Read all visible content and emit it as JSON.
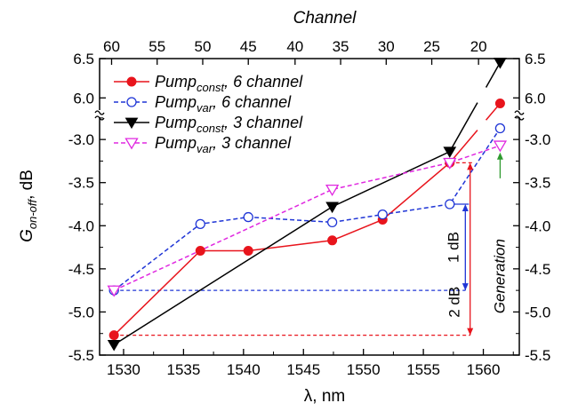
{
  "chart_data": {
    "type": "line",
    "title": "",
    "xlabel": "λ, nm",
    "x2label": "Channel",
    "ylabel": {
      "main": "G",
      "sub": "on-off",
      "unit": ", dB"
    },
    "xlim": [
      1528,
      1563
    ],
    "x_ticks": [
      1530,
      1535,
      1540,
      1545,
      1550,
      1555,
      1560
    ],
    "x_tick_labels": [
      "1530",
      "1535",
      "1540",
      "1545",
      "1550",
      "1555",
      "1560"
    ],
    "x2_ticks": [
      1529,
      1532.8,
      1536.6,
      1540.4,
      1544.3,
      1548.1,
      1551.9,
      1555.7,
      1559.6
    ],
    "x2_tick_labels": [
      "60",
      "55",
      "50",
      "45",
      "40",
      "35",
      "30",
      "25",
      "20"
    ],
    "y_axis": {
      "lower_range": [
        -5.5,
        -2.7
      ],
      "break_between": [
        -2.7,
        5.8
      ],
      "upper_range": [
        5.8,
        6.5
      ],
      "ticks": [
        -5.5,
        -5.0,
        -4.5,
        -4.0,
        -3.5,
        -3.0,
        6.0,
        6.5
      ],
      "tick_labels": [
        "-5.5",
        "-5.0",
        "-4.5",
        "-4.0",
        "-3.5",
        "-3.0",
        "6.0",
        "6.5"
      ]
    },
    "grid": false,
    "legend_position": "top-left",
    "series": [
      {
        "name": {
          "main": "Pump",
          "sub": "const",
          "rest": ", 6 channel"
        },
        "color": "#e8141c",
        "line": "solid",
        "marker": "circle-filled",
        "x": [
          1529.2,
          1536.4,
          1540.4,
          1547.4,
          1551.6,
          1557.2,
          1561.4
        ],
        "y": [
          -5.27,
          -4.29,
          -4.29,
          -4.17,
          -3.93,
          -3.27,
          5.93
        ]
      },
      {
        "name": {
          "main": "Pump",
          "sub": "var",
          "rest": ", 6 channel"
        },
        "color": "#1f35d6",
        "line": "dashed",
        "marker": "circle-open",
        "x": [
          1529.2,
          1536.4,
          1540.4,
          1547.4,
          1551.6,
          1557.2,
          1561.4
        ],
        "y": [
          -4.75,
          -3.98,
          -3.9,
          -3.96,
          -3.87,
          -3.75,
          -2.87
        ]
      },
      {
        "name": {
          "main": "Pump",
          "sub": "const",
          "rest": ", 3 channel"
        },
        "color": "#000000",
        "line": "solid",
        "marker": "triangle-down-filled",
        "x": [
          1529.2,
          1547.4,
          1557.2,
          1561.4
        ],
        "y": [
          -5.38,
          -3.78,
          -3.14,
          6.45
        ]
      },
      {
        "name": {
          "main": "Pump",
          "sub": "var",
          "rest": ", 3 channel"
        },
        "color": "#e028e0",
        "line": "dashed",
        "marker": "triangle-down-open",
        "x": [
          1529.2,
          1547.4,
          1557.2,
          1561.4
        ],
        "y": [
          -4.75,
          -3.58,
          -3.27,
          -3.07
        ]
      }
    ],
    "annotations": {
      "one_db": {
        "label": "1 dB",
        "x": 1558.5,
        "y_from": -4.75,
        "y_to": -3.75,
        "color": "#1f35d6"
      },
      "two_db": {
        "label": "2 dB",
        "x": 1558.9,
        "y_from": -5.27,
        "y_to": -3.27,
        "color": "#e8141c"
      },
      "generation": {
        "label": "Generation",
        "x": 1561.4,
        "y_from": -3.45,
        "y_to": -3.15,
        "color": "#2f9a2f"
      }
    }
  }
}
